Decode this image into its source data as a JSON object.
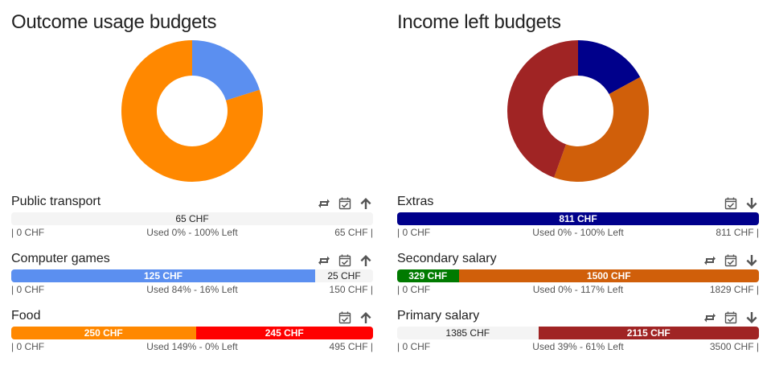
{
  "outcome": {
    "title": "Outcome usage budgets",
    "chart_data": {
      "type": "pie",
      "categories": [
        "Public transport",
        "Computer games",
        "Food"
      ],
      "values": [
        0,
        125,
        495
      ],
      "colors": [
        "#f4f4f4",
        "#5b8ff0",
        "#ff8800"
      ]
    },
    "budgets": [
      {
        "name": "Public transport",
        "icons": [
          "repeat-icon",
          "calendar-check-icon",
          "arrow-up-icon"
        ],
        "segments": [
          {
            "label": "65 CHF",
            "fraction": 1.0,
            "color": "#f4f4f4",
            "light": true
          }
        ],
        "low": "| 0 CHF",
        "usage": "Used 0% - 100% Left",
        "high": "65 CHF |"
      },
      {
        "name": "Computer games",
        "icons": [
          "repeat-icon",
          "calendar-check-icon",
          "arrow-up-icon"
        ],
        "segments": [
          {
            "label": "125 CHF",
            "fraction": 0.84,
            "color": "#5b8ff0",
            "light": false
          },
          {
            "label": "25 CHF",
            "fraction": 0.16,
            "color": "#f4f4f4",
            "light": true
          }
        ],
        "low": "| 0 CHF",
        "usage": "Used 84% - 16% Left",
        "high": "150 CHF |"
      },
      {
        "name": "Food",
        "icons": [
          "calendar-check-icon",
          "arrow-up-icon"
        ],
        "segments": [
          {
            "label": "250 CHF",
            "fraction": 0.51,
            "color": "#ff8800",
            "light": false
          },
          {
            "label": "245 CHF",
            "fraction": 0.49,
            "color": "#ff0000",
            "light": false
          }
        ],
        "low": "| 0 CHF",
        "usage": "Used 149% - 0% Left",
        "high": "495 CHF |"
      }
    ]
  },
  "income": {
    "title": "Income left budgets",
    "chart_data": {
      "type": "pie",
      "categories": [
        "Extras",
        "Secondary salary",
        "Primary salary"
      ],
      "values": [
        811,
        1829,
        2115
      ],
      "colors": [
        "#00008b",
        "#d05f0a",
        "#a02424"
      ]
    },
    "budgets": [
      {
        "name": "Extras",
        "icons": [
          "calendar-check-icon",
          "arrow-down-icon"
        ],
        "segments": [
          {
            "label": "811 CHF",
            "fraction": 1.0,
            "color": "#00008b",
            "light": false
          }
        ],
        "low": "| 0 CHF",
        "usage": "Used 0% - 100% Left",
        "high": "811 CHF |"
      },
      {
        "name": "Secondary salary",
        "icons": [
          "repeat-icon",
          "calendar-check-icon",
          "arrow-down-icon"
        ],
        "segments": [
          {
            "label": "329 CHF",
            "fraction": 0.17,
            "color": "#007a00",
            "light": false
          },
          {
            "label": "1500 CHF",
            "fraction": 0.83,
            "color": "#d05f0a",
            "light": false
          }
        ],
        "low": "| 0 CHF",
        "usage": "Used 0% - 117% Left",
        "high": "1829 CHF |"
      },
      {
        "name": "Primary salary",
        "icons": [
          "repeat-icon",
          "calendar-check-icon",
          "arrow-down-icon"
        ],
        "segments": [
          {
            "label": "1385 CHF",
            "fraction": 0.39,
            "color": "#f4f4f4",
            "light": true
          },
          {
            "label": "2115 CHF",
            "fraction": 0.61,
            "color": "#a02424",
            "light": false
          }
        ],
        "low": "| 0 CHF",
        "usage": "Used 39% - 61% Left",
        "high": "3500 CHF |"
      }
    ]
  }
}
